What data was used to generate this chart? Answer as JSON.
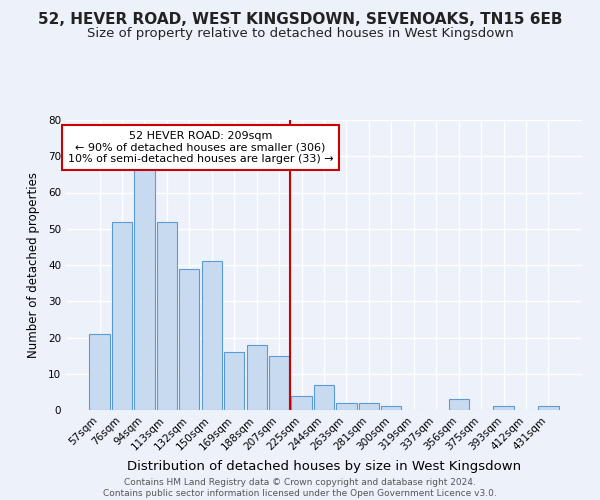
{
  "title": "52, HEVER ROAD, WEST KINGSDOWN, SEVENOAKS, TN15 6EB",
  "subtitle": "Size of property relative to detached houses in West Kingsdown",
  "xlabel": "Distribution of detached houses by size in West Kingsdown",
  "ylabel": "Number of detached properties",
  "bar_labels": [
    "57sqm",
    "76sqm",
    "94sqm",
    "113sqm",
    "132sqm",
    "150sqm",
    "169sqm",
    "188sqm",
    "207sqm",
    "225sqm",
    "244sqm",
    "263sqm",
    "281sqm",
    "300sqm",
    "319sqm",
    "337sqm",
    "356sqm",
    "375sqm",
    "393sqm",
    "412sqm",
    "431sqm"
  ],
  "bar_values": [
    21,
    52,
    67,
    52,
    39,
    41,
    16,
    18,
    15,
    4,
    7,
    2,
    2,
    1,
    0,
    0,
    3,
    0,
    1,
    0,
    1
  ],
  "bar_color": "#c8daf0",
  "bar_edge_color": "#5b9bd5",
  "vline_x": 8.5,
  "annotation_box_text": "52 HEVER ROAD: 209sqm\n← 90% of detached houses are smaller (306)\n10% of semi-detached houses are larger (33) →",
  "vline_color": "#cc0000",
  "ylim": [
    0,
    80
  ],
  "yticks": [
    0,
    10,
    20,
    30,
    40,
    50,
    60,
    70,
    80
  ],
  "background_color": "#edf2fa",
  "grid_color": "#ffffff",
  "footer_text": "Contains HM Land Registry data © Crown copyright and database right 2024.\nContains public sector information licensed under the Open Government Licence v3.0.",
  "title_fontsize": 11,
  "subtitle_fontsize": 9.5,
  "xlabel_fontsize": 9.5,
  "ylabel_fontsize": 8.5,
  "tick_fontsize": 7.5,
  "annotation_fontsize": 8.0,
  "footer_fontsize": 6.5
}
